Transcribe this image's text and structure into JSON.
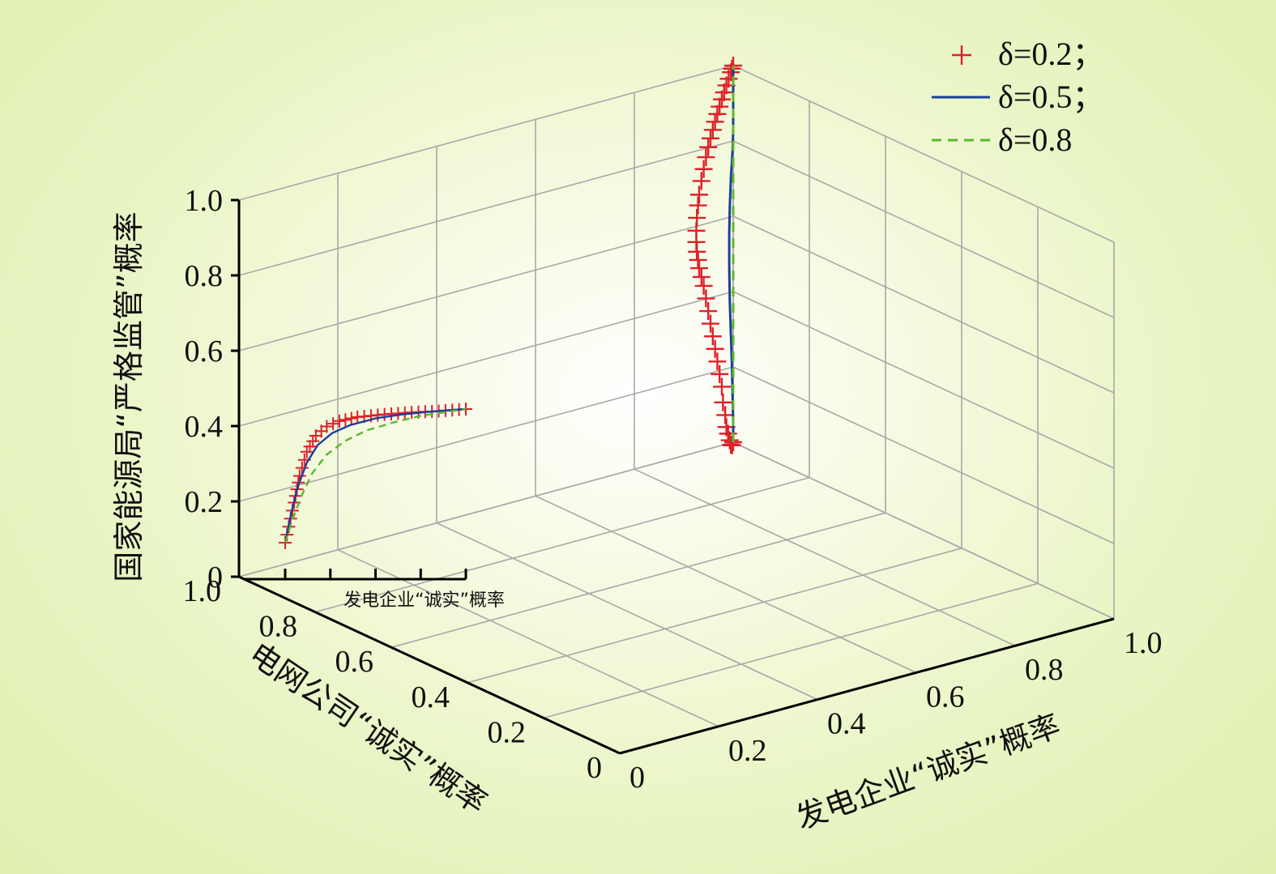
{
  "chart_data": {
    "type": "line",
    "view": "3d",
    "xlabel": "发电企业“诚实”概率",
    "ylabel": "电网公司“诚实”概率",
    "zlabel": "国家能源局“严格监管”概率",
    "xlim": [
      0,
      1.0
    ],
    "ylim": [
      0,
      1.0
    ],
    "zlim": [
      0,
      1.0
    ],
    "x_ticks": [
      "0",
      "0.2",
      "0.4",
      "0.6",
      "0.8",
      "1.0"
    ],
    "y_ticks": [
      "0",
      "0.2",
      "0.4",
      "0.6",
      "0.8",
      "1.0"
    ],
    "z_ticks": [
      "0",
      "0.2",
      "0.4",
      "0.6",
      "0.8",
      "1.0"
    ],
    "grid": true,
    "legend_position": "top-right",
    "series": [
      {
        "name": "δ=0.2；",
        "style": "plus-markers",
        "color": "#e0202a",
        "points": [
          [
            1.0,
            1.0,
            0.0
          ],
          [
            0.99,
            0.99,
            0.0
          ],
          [
            0.98,
            0.98,
            0.01
          ],
          [
            0.97,
            0.97,
            0.03
          ],
          [
            0.955,
            0.955,
            0.06
          ],
          [
            0.94,
            0.94,
            0.09
          ],
          [
            0.93,
            0.93,
            0.13
          ],
          [
            0.91,
            0.91,
            0.18
          ],
          [
            0.9,
            0.9,
            0.23
          ],
          [
            0.88,
            0.88,
            0.28
          ],
          [
            0.86,
            0.86,
            0.33
          ],
          [
            0.84,
            0.84,
            0.38
          ],
          [
            0.82,
            0.82,
            0.43
          ],
          [
            0.8,
            0.8,
            0.48
          ],
          [
            0.78,
            0.78,
            0.53
          ],
          [
            0.76,
            0.76,
            0.58
          ],
          [
            0.74,
            0.74,
            0.63
          ],
          [
            0.72,
            0.72,
            0.67
          ],
          [
            0.7,
            0.7,
            0.71
          ],
          [
            0.69,
            0.69,
            0.74
          ],
          [
            0.68,
            0.68,
            0.77
          ],
          [
            0.675,
            0.675,
            0.8
          ],
          [
            0.675,
            0.675,
            0.83
          ],
          [
            0.68,
            0.68,
            0.86
          ],
          [
            0.69,
            0.69,
            0.885
          ],
          [
            0.7,
            0.7,
            0.905
          ],
          [
            0.72,
            0.72,
            0.925
          ],
          [
            0.74,
            0.74,
            0.94
          ],
          [
            0.76,
            0.76,
            0.955
          ],
          [
            0.78,
            0.78,
            0.965
          ],
          [
            0.8,
            0.8,
            0.972
          ],
          [
            0.82,
            0.82,
            0.978
          ],
          [
            0.84,
            0.84,
            0.983
          ],
          [
            0.86,
            0.86,
            0.987
          ],
          [
            0.88,
            0.88,
            0.99
          ],
          [
            0.9,
            0.9,
            0.993
          ],
          [
            0.92,
            0.92,
            0.995
          ],
          [
            0.94,
            0.94,
            0.997
          ],
          [
            0.96,
            0.96,
            0.998
          ],
          [
            0.98,
            0.98,
            0.999
          ],
          [
            0.99,
            0.99,
            1.0
          ],
          [
            1.0,
            1.0,
            1.0
          ]
        ]
      },
      {
        "name": "δ=0.5；",
        "style": "solid",
        "color": "#1a3f9c",
        "points": [
          [
            1.0,
            1.0,
            0.0
          ],
          [
            1.0,
            1.0,
            0.05
          ],
          [
            0.995,
            0.995,
            0.12
          ],
          [
            0.99,
            0.99,
            0.2
          ],
          [
            0.98,
            0.98,
            0.3
          ],
          [
            0.97,
            0.97,
            0.4
          ],
          [
            0.965,
            0.965,
            0.5
          ],
          [
            0.965,
            0.965,
            0.58
          ],
          [
            0.97,
            0.97,
            0.65
          ],
          [
            0.98,
            0.98,
            0.72
          ],
          [
            0.995,
            0.995,
            0.78
          ],
          [
            1.0,
            1.0,
            0.83
          ],
          [
            1.0,
            1.0,
            0.88
          ],
          [
            1.0,
            1.0,
            0.93
          ],
          [
            1.0,
            1.0,
            0.97
          ],
          [
            1.0,
            1.0,
            1.0
          ]
        ]
      },
      {
        "name": "δ=0.8",
        "style": "dashed",
        "color": "#5bb82e",
        "points": [
          [
            1.0,
            1.0,
            0.0
          ],
          [
            1.0,
            1.0,
            0.05
          ],
          [
            1.0,
            1.0,
            0.12
          ],
          [
            1.0,
            1.0,
            0.2
          ],
          [
            1.0,
            1.0,
            0.3
          ],
          [
            1.0,
            1.0,
            0.4
          ],
          [
            1.0,
            1.0,
            0.5
          ],
          [
            1.0,
            1.0,
            0.6
          ],
          [
            1.0,
            1.0,
            0.7
          ],
          [
            1.0,
            1.0,
            0.78
          ],
          [
            1.0,
            1.0,
            0.85
          ],
          [
            1.0,
            1.0,
            0.9
          ],
          [
            1.0,
            1.0,
            0.95
          ],
          [
            1.0,
            1.0,
            1.0
          ]
        ]
      }
    ],
    "inset": {
      "xlabel": "发电企业“诚实”概率",
      "series": [
        {
          "name": "δ=0.2；",
          "x": [
            0,
            0.02,
            0.05,
            0.08,
            0.12,
            0.17,
            0.23,
            0.3,
            0.4,
            0.55,
            0.7,
            0.85,
            1.0
          ],
          "y": [
            0,
            0.12,
            0.3,
            0.5,
            0.68,
            0.8,
            0.87,
            0.91,
            0.94,
            0.96,
            0.975,
            0.985,
            1.0
          ]
        },
        {
          "name": "δ=0.5；",
          "x": [
            0,
            0.03,
            0.07,
            0.12,
            0.18,
            0.26,
            0.36,
            0.5,
            0.65,
            0.8,
            1.0
          ],
          "y": [
            0,
            0.2,
            0.42,
            0.6,
            0.73,
            0.82,
            0.88,
            0.93,
            0.96,
            0.98,
            1.0
          ]
        },
        {
          "name": "δ=0.8",
          "x": [
            0,
            0.04,
            0.09,
            0.15,
            0.23,
            0.33,
            0.45,
            0.6,
            0.75,
            0.9,
            1.0
          ],
          "y": [
            0,
            0.17,
            0.35,
            0.52,
            0.66,
            0.76,
            0.84,
            0.9,
            0.95,
            0.98,
            1.0
          ]
        }
      ]
    }
  }
}
